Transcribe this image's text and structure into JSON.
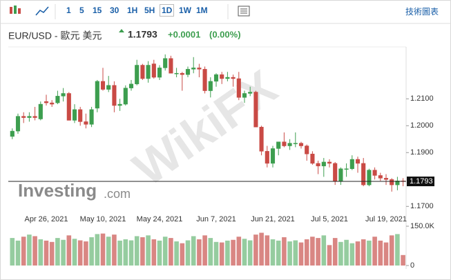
{
  "toolbar": {
    "intervals": [
      "1",
      "5",
      "15",
      "30",
      "1H",
      "5H",
      "1D",
      "1W",
      "1M"
    ],
    "selected_index": 6,
    "chart_link": "技術圖表"
  },
  "header": {
    "symbol": "EUR/USD - 歐元 美元",
    "price": "1.1793",
    "change": "+0.0001",
    "change_pct": "(0.00%)"
  },
  "watermark": {
    "logo": "Investing",
    "logo_suffix": ".com",
    "brand": "WikiFX"
  },
  "chart_data": {
    "type": "candlestick",
    "categories": [
      null,
      null,
      null,
      null,
      null,
      null,
      "Apr 26, 2021",
      null,
      null,
      null,
      null,
      null,
      null,
      null,
      null,
      null,
      "May 10, 2021",
      null,
      null,
      null,
      null,
      null,
      null,
      null,
      null,
      null,
      "May 24, 2021",
      null,
      null,
      null,
      null,
      null,
      null,
      null,
      null,
      null,
      "Jun 7, 2021",
      null,
      null,
      null,
      null,
      null,
      null,
      null,
      null,
      null,
      "Jun 21, 2021",
      null,
      null,
      null,
      null,
      null,
      null,
      null,
      null,
      null,
      "Jul 5, 2021",
      null,
      null,
      null,
      null,
      null,
      null,
      null,
      null,
      null,
      "Jul 19, 2021",
      null,
      null,
      null
    ],
    "open": [
      1.196,
      1.198,
      1.2035,
      1.203,
      1.2035,
      1.2025,
      1.209,
      1.2085,
      1.2085,
      1.211,
      1.212,
      1.202,
      1.206,
      1.2015,
      1.2005,
      1.2065,
      1.2165,
      1.2135,
      1.215,
      1.2075,
      1.208,
      1.214,
      1.2155,
      1.2225,
      1.2175,
      1.223,
      1.218,
      1.2215,
      1.225,
      1.2195,
      1.2195,
      1.219,
      1.221,
      1.2215,
      1.221,
      1.213,
      1.2165,
      1.219,
      1.2175,
      1.218,
      1.2175,
      1.2105,
      1.212,
      1.2125,
      1.1995,
      1.1905,
      1.186,
      1.1915,
      1.194,
      1.1925,
      1.1935,
      1.1935,
      1.1925,
      1.1895,
      1.186,
      1.185,
      1.1865,
      1.186,
      1.1795,
      1.184,
      1.184,
      1.1875,
      1.186,
      1.178,
      1.1835,
      1.1815,
      1.1805,
      1.18,
      1.178,
      1.1795
    ],
    "high": [
      1.199,
      1.2045,
      1.205,
      1.205,
      1.207,
      1.209,
      1.2115,
      1.2095,
      1.213,
      1.214,
      1.2125,
      1.208,
      1.207,
      1.2045,
      1.207,
      1.217,
      1.2215,
      1.2185,
      1.2165,
      1.21,
      1.215,
      1.217,
      1.2245,
      1.223,
      1.224,
      1.2245,
      1.2225,
      1.2265,
      1.226,
      1.2215,
      1.22,
      1.222,
      1.2255,
      1.223,
      1.222,
      1.218,
      1.2195,
      1.22,
      1.22,
      1.219,
      1.22,
      1.213,
      1.2145,
      1.213,
      1.2,
      1.1925,
      1.1925,
      1.194,
      1.1975,
      1.195,
      1.1975,
      1.194,
      1.193,
      1.1905,
      1.187,
      1.188,
      1.1875,
      1.1865,
      1.1845,
      1.186,
      1.189,
      1.1885,
      1.188,
      1.184,
      1.1845,
      1.1825,
      1.182,
      1.1805,
      1.181,
      1.1805
    ],
    "low": [
      1.195,
      1.197,
      1.201,
      1.2015,
      1.202,
      1.202,
      1.2075,
      1.207,
      1.208,
      1.209,
      1.202,
      1.201,
      1.2,
      1.199,
      1.1995,
      1.205,
      1.213,
      1.2125,
      1.205,
      1.2055,
      1.2075,
      1.213,
      1.215,
      1.217,
      1.216,
      1.2175,
      1.217,
      1.2205,
      1.2195,
      1.218,
      1.213,
      1.218,
      1.2195,
      1.218,
      1.212,
      1.2105,
      1.2145,
      1.2155,
      1.2165,
      1.2145,
      1.2095,
      1.2085,
      1.211,
      1.1995,
      1.189,
      1.1845,
      1.1845,
      1.189,
      1.192,
      1.191,
      1.192,
      1.1915,
      1.187,
      1.1855,
      1.182,
      1.181,
      1.1845,
      1.178,
      1.178,
      1.181,
      1.1835,
      1.1825,
      1.1775,
      1.1775,
      1.18,
      1.1795,
      1.178,
      1.1755,
      1.176,
      1.1775
    ],
    "close": [
      1.198,
      1.2035,
      1.203,
      1.2035,
      1.203,
      1.208,
      1.2085,
      1.208,
      1.211,
      1.212,
      1.202,
      1.206,
      1.2015,
      1.2005,
      1.206,
      1.2165,
      1.2135,
      1.215,
      1.2075,
      1.208,
      1.214,
      1.2155,
      1.2225,
      1.2175,
      1.2225,
      1.218,
      1.2215,
      1.225,
      1.2195,
      1.2195,
      1.219,
      1.221,
      1.2215,
      1.221,
      1.213,
      1.2165,
      1.219,
      1.2175,
      1.218,
      1.2175,
      1.2105,
      1.212,
      1.2125,
      1.1995,
      1.1905,
      1.186,
      1.1915,
      1.194,
      1.1925,
      1.1935,
      1.1935,
      1.1925,
      1.1895,
      1.186,
      1.185,
      1.1865,
      1.186,
      1.1795,
      1.184,
      1.184,
      1.1875,
      1.186,
      1.178,
      1.1835,
      1.1815,
      1.1805,
      1.18,
      1.178,
      1.1795,
      1.1793
    ],
    "volume": [
      105000,
      95000,
      110000,
      118000,
      112000,
      100000,
      95000,
      90000,
      105000,
      98000,
      115000,
      102000,
      96000,
      92000,
      108000,
      120000,
      122000,
      110000,
      118000,
      95000,
      100000,
      96000,
      112000,
      108000,
      115000,
      100000,
      95000,
      110000,
      105000,
      92000,
      85000,
      96000,
      112000,
      100000,
      115000,
      105000,
      90000,
      88000,
      95000,
      98000,
      110000,
      102000,
      96000,
      118000,
      125000,
      115000,
      100000,
      95000,
      108000,
      92000,
      96000,
      88000,
      100000,
      110000,
      105000,
      115000,
      78000,
      105000,
      90000,
      98000,
      85000,
      92000,
      100000,
      95000,
      110000,
      95000,
      88000,
      115000,
      120000,
      40000
    ],
    "up_color": "#3d9e4f",
    "down_color": "#c94a45",
    "up_volume_color": "#95cc9f",
    "down_volume_color": "#d98683",
    "ylim": [
      1.167,
      1.2275
    ],
    "yticks": [
      {
        "value": 1.17,
        "label": "1.1700"
      },
      {
        "value": 1.19,
        "label": "1.1900"
      },
      {
        "value": 1.2,
        "label": "1.2000"
      },
      {
        "value": 1.21,
        "label": "1.2100"
      }
    ],
    "volume_ylim": [
      0,
      150000
    ],
    "volume_yticks": [
      0,
      {
        "value": 150000,
        "label": "150.0K"
      }
    ]
  }
}
